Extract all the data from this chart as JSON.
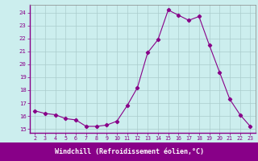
{
  "x": [
    2,
    3,
    4,
    5,
    6,
    7,
    8,
    9,
    10,
    11,
    12,
    13,
    14,
    15,
    16,
    17,
    18,
    19,
    20,
    21,
    22,
    23
  ],
  "y": [
    16.4,
    16.2,
    16.1,
    15.8,
    15.7,
    15.2,
    15.2,
    15.3,
    15.6,
    16.8,
    18.2,
    20.9,
    21.9,
    24.2,
    23.8,
    23.4,
    23.7,
    21.5,
    19.4,
    17.3,
    16.1,
    15.2
  ],
  "line_color": "#880088",
  "marker": "D",
  "marker_size": 2.2,
  "bg_color": "#cceeee",
  "grid_color": "#aacccc",
  "xlabel": "Windchill (Refroidissement éolien,°C)",
  "xlabel_color": "#ffffff",
  "xlabel_bg": "#880088",
  "ytick_labels": [
    "15",
    "16",
    "17",
    "18",
    "19",
    "20",
    "21",
    "22",
    "23",
    "24"
  ],
  "ytick_vals": [
    15,
    16,
    17,
    18,
    19,
    20,
    21,
    22,
    23,
    24
  ],
  "xlim": [
    1.5,
    23.5
  ],
  "ylim": [
    14.7,
    24.6
  ],
  "tick_color": "#880088",
  "spine_color": "#888888"
}
